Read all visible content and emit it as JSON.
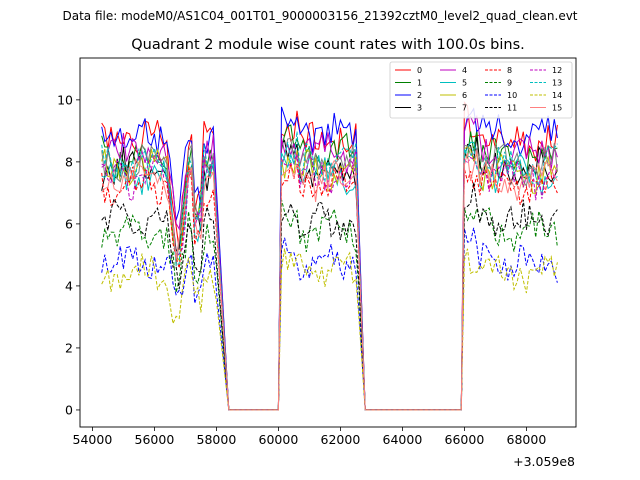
{
  "chart_data": {
    "type": "line",
    "suptitle": "Data file: modeM0/AS1C04_001T01_9000003156_21392cztM0_level2_quad_clean.evt",
    "title": "Quadrant 2 module wise count rates with 100.0s bins.",
    "xlabel": "",
    "ylabel": "",
    "x_offset_label": "+3.059e8",
    "xlim": [
      53600,
      69600
    ],
    "ylim": [
      -0.55,
      11.35
    ],
    "x_ticks": [
      54000,
      56000,
      58000,
      60000,
      62000,
      64000,
      66000,
      68000
    ],
    "y_ticks": [
      0,
      2,
      4,
      6,
      8,
      10
    ],
    "segments": [
      [
        54300,
        57900
      ],
      [
        60100,
        62500
      ],
      [
        66000,
        69000
      ]
    ],
    "grid": false,
    "legend_position": "top-right",
    "series": [
      {
        "name": "0",
        "color": "#ff0000",
        "style": "solid",
        "level": 8.7
      },
      {
        "name": "1",
        "color": "#008000",
        "style": "solid",
        "level": 8.2
      },
      {
        "name": "2",
        "color": "#0000ff",
        "style": "solid",
        "level": 8.9
      },
      {
        "name": "3",
        "color": "#000000",
        "style": "solid",
        "level": 7.8
      },
      {
        "name": "4",
        "color": "#bf00bf",
        "style": "solid",
        "level": 8.3
      },
      {
        "name": "5",
        "color": "#00bfbf",
        "style": "solid",
        "level": 7.6
      },
      {
        "name": "6",
        "color": "#bfbf00",
        "style": "solid",
        "level": 7.7
      },
      {
        "name": "7",
        "color": "#808080",
        "style": "solid",
        "level": 7.9
      },
      {
        "name": "8",
        "color": "#ff0000",
        "style": "dashed",
        "level": 7.2
      },
      {
        "name": "9",
        "color": "#008000",
        "style": "dashed",
        "level": 5.8
      },
      {
        "name": "10",
        "color": "#0000ff",
        "style": "dashed",
        "level": 4.8
      },
      {
        "name": "11",
        "color": "#000000",
        "style": "dashed",
        "level": 6.1
      },
      {
        "name": "12",
        "color": "#bf00bf",
        "style": "dashed",
        "level": 7.5
      },
      {
        "name": "13",
        "color": "#00bfbf",
        "style": "dashed",
        "level": 7.9
      },
      {
        "name": "14",
        "color": "#bfbf00",
        "style": "dashed",
        "level": 4.4
      },
      {
        "name": "15",
        "color": "#ff8080",
        "style": "solid",
        "level": 7.4
      }
    ]
  }
}
